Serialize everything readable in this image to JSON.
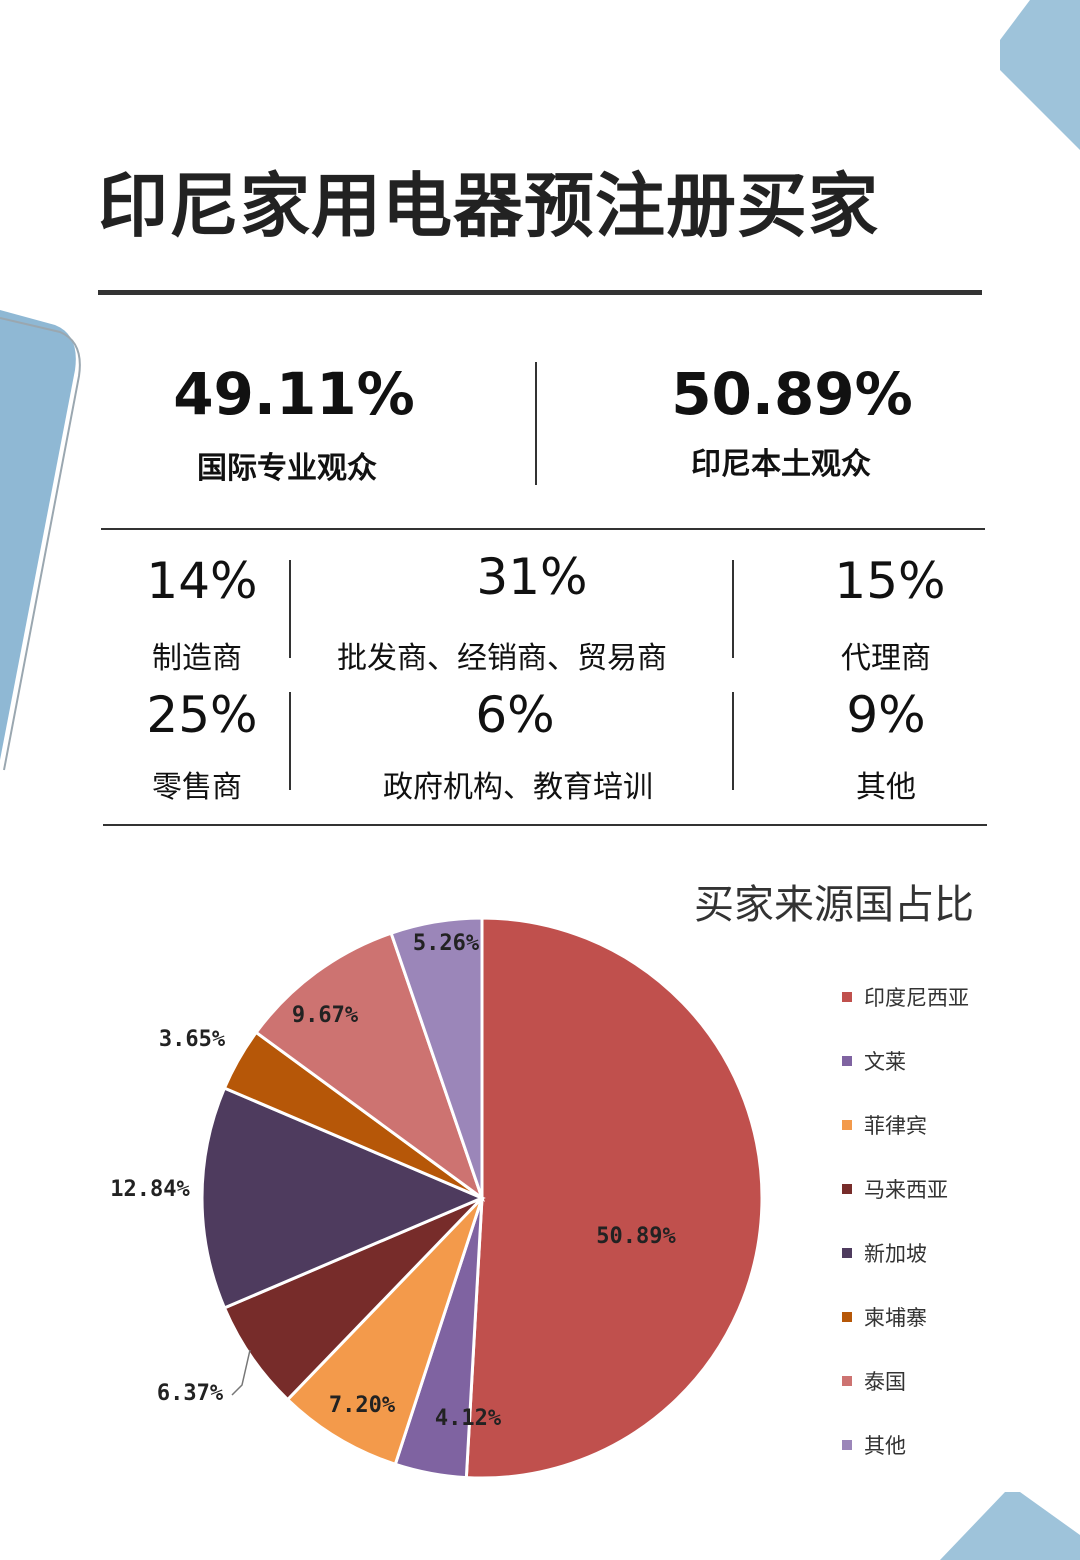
{
  "title": "印尼家用电器预注册买家",
  "summary": [
    {
      "value": "49.11%",
      "label": "国际专业观众"
    },
    {
      "value": "50.89%",
      "label": "印尼本土观众"
    }
  ],
  "categories": [
    {
      "value": "14%",
      "label": "制造商"
    },
    {
      "value": "31%",
      "label": "批发商、经销商、贸易商"
    },
    {
      "value": "15%",
      "label": "代理商"
    },
    {
      "value": "25%",
      "label": "零售商"
    },
    {
      "value": "6%",
      "label": "政府机构、教育培训"
    },
    {
      "value": "9%",
      "label": "其他"
    }
  ],
  "chart_data": {
    "type": "pie",
    "title": "买家来源国占比",
    "legend_position": "right",
    "slices": [
      {
        "name": "印度尼西亚",
        "value": 50.89,
        "label": "50.89%",
        "color": "#c0504d"
      },
      {
        "name": "文莱",
        "value": 4.12,
        "label": "4.12%",
        "color": "#7f63a1"
      },
      {
        "name": "菲律宾",
        "value": 7.2,
        "label": "7.20%",
        "color": "#f39a4b"
      },
      {
        "name": "马来西亚",
        "value": 6.37,
        "label": "6.37%",
        "color": "#772c2a"
      },
      {
        "name": "新加坡",
        "value": 12.84,
        "label": "12.84%",
        "color": "#4e3b5e"
      },
      {
        "name": "柬埔寨",
        "value": 3.65,
        "label": "3.65%",
        "color": "#b65708"
      },
      {
        "name": "泰国",
        "value": 9.67,
        "label": "9.67%",
        "color": "#cd7371"
      },
      {
        "name": "其他",
        "value": 5.26,
        "label": "5.26%",
        "color": "#9b86b9"
      }
    ]
  }
}
